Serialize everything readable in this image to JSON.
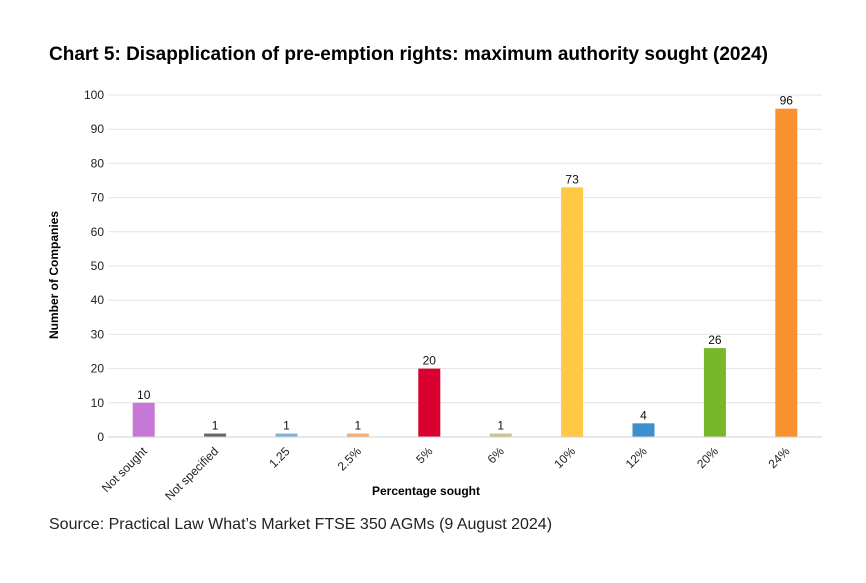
{
  "chart_data": {
    "type": "bar",
    "title": "Chart 5: Disapplication of pre-emption rights: maximum authority sought (2024)",
    "xlabel": "Percentage sought",
    "ylabel": "Number of Companies",
    "categories": [
      "Not sought",
      "Not specified",
      "1.25",
      "2.5%",
      "5%",
      "6%",
      "10%",
      "12%",
      "20%",
      "24%"
    ],
    "values": [
      10,
      1,
      1,
      1,
      20,
      1,
      73,
      4,
      26,
      96
    ],
    "colors": [
      "#c678d6",
      "#666666",
      "#7ab4dc",
      "#f7ad6e",
      "#d9002f",
      "#cfc08f",
      "#ffc845",
      "#3e8fce",
      "#77b82a",
      "#f7922f"
    ],
    "ylim": [
      0,
      100
    ],
    "yticks": [
      0,
      10,
      20,
      30,
      40,
      50,
      60,
      70,
      80,
      90,
      100
    ],
    "grid": true,
    "legend": "none"
  },
  "source": "Source: Practical Law What’s Market FTSE 350 AGMs (9 August 2024)"
}
